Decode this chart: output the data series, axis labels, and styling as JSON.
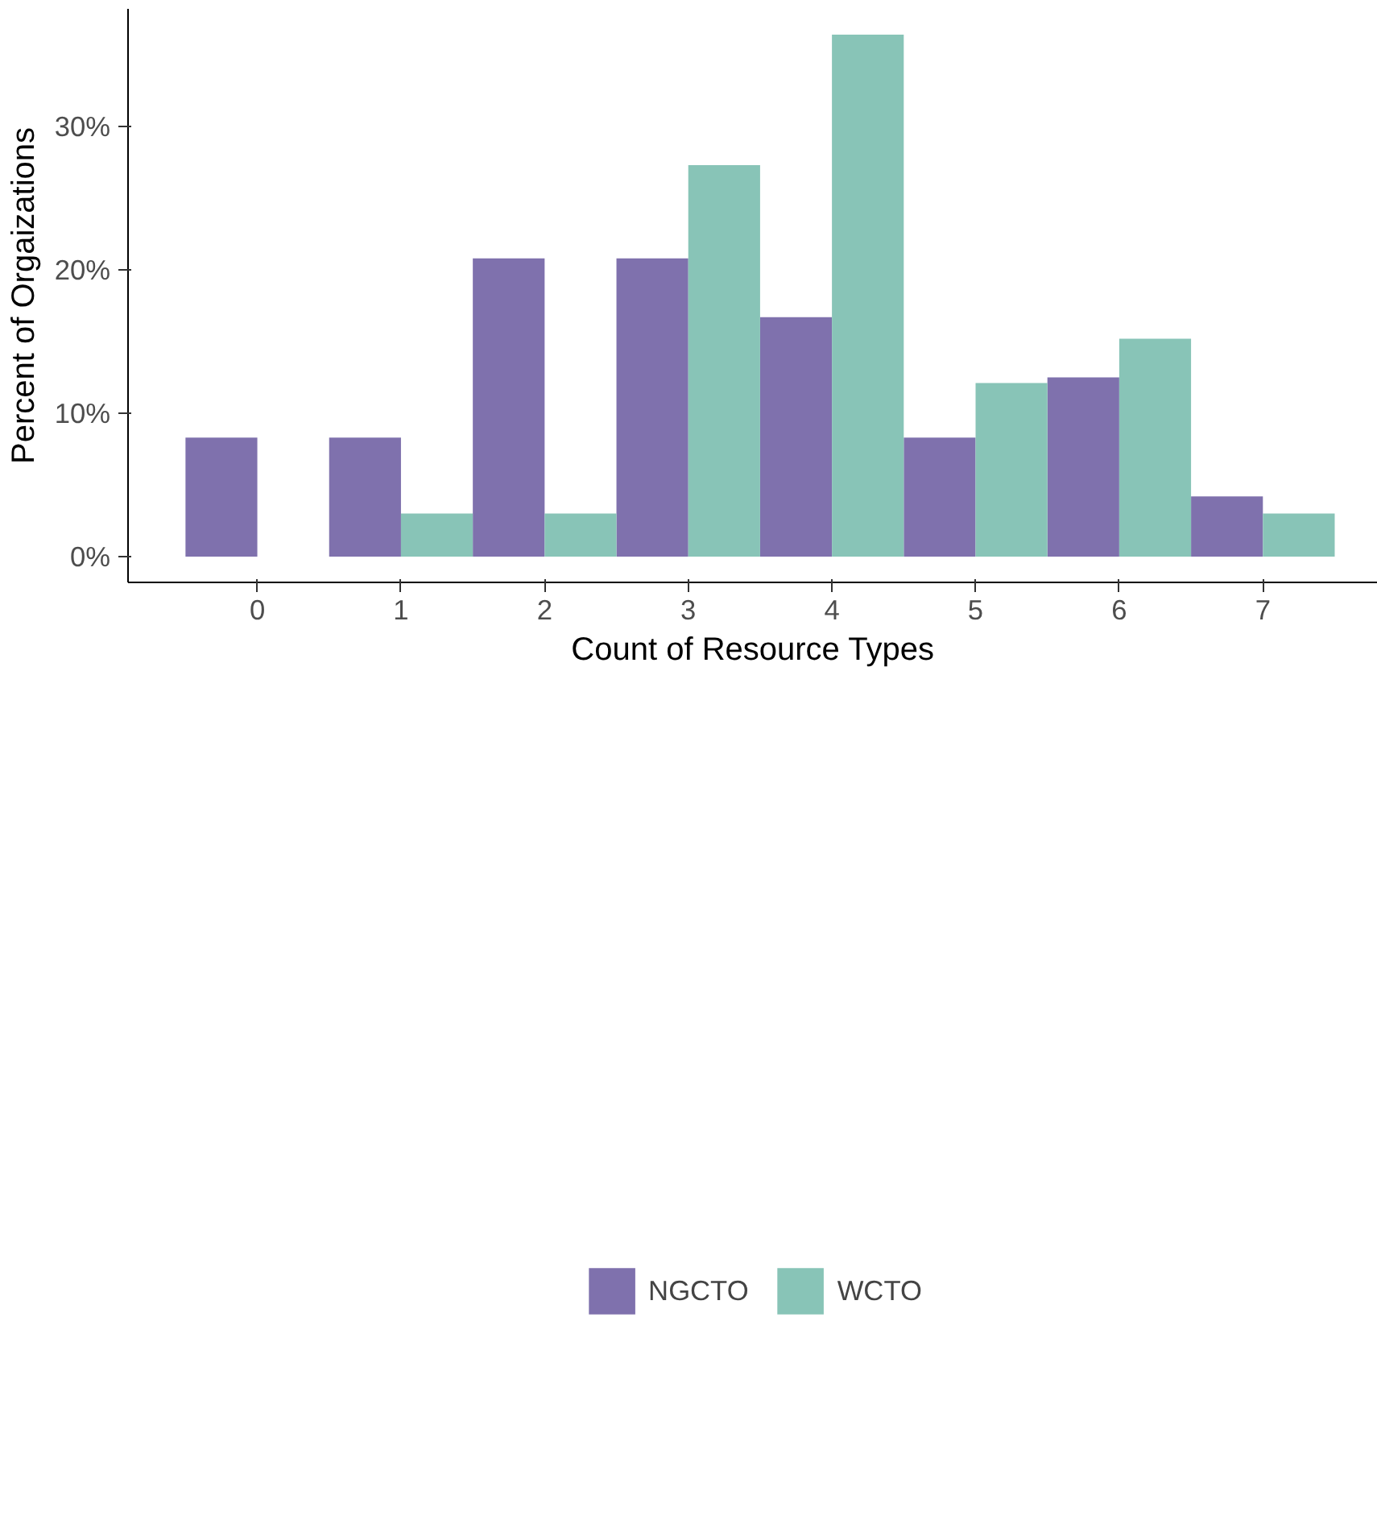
{
  "chart_data": {
    "type": "bar",
    "xlabel": "Count of Resource Types",
    "ylabel": "Percent of Orgaizations",
    "x": [
      0,
      1,
      2,
      3,
      4,
      5,
      6,
      7
    ],
    "series": [
      {
        "name": "NGCTO",
        "color": "#7f71ad",
        "values": [
          8.3,
          8.3,
          20.8,
          20.8,
          16.7,
          8.3,
          12.5,
          4.2
        ]
      },
      {
        "name": "WCTO",
        "color": "#88c4b7",
        "values": [
          0,
          3.0,
          3.0,
          27.3,
          36.4,
          12.1,
          15.2,
          3.0
        ]
      }
    ],
    "xlim": [
      -0.9,
      7.8
    ],
    "xticks": [
      0,
      1,
      2,
      3,
      4,
      5,
      6,
      7
    ],
    "ylim": [
      -1.8,
      38.2
    ],
    "yticks": [
      {
        "value": 0,
        "label": "0%"
      },
      {
        "value": 10,
        "label": "10%"
      },
      {
        "value": 20,
        "label": "20%"
      },
      {
        "value": 30,
        "label": "30%"
      }
    ],
    "grid": false,
    "legend": "bottom"
  }
}
